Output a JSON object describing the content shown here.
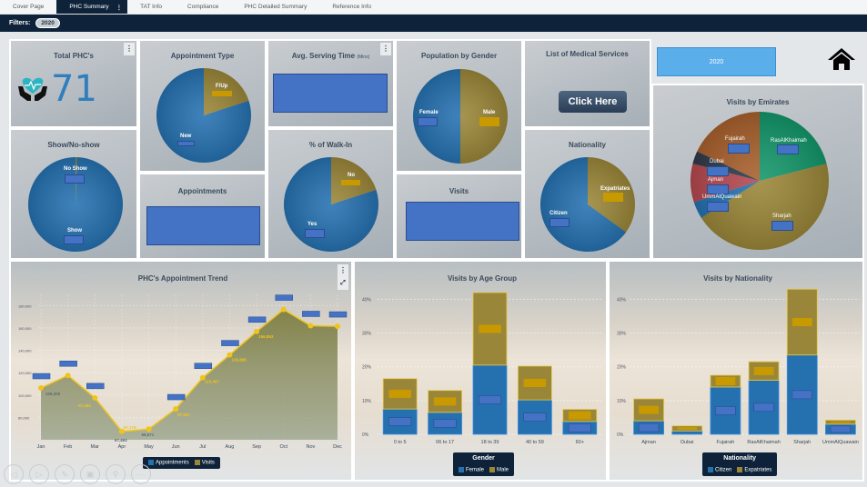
{
  "tabs": [
    {
      "label": "Cover Page",
      "active": false
    },
    {
      "label": "PHC Summary",
      "active": true
    },
    {
      "label": "TAT Info",
      "active": false
    },
    {
      "label": "Compliance",
      "active": false
    },
    {
      "label": "PHC Detailed Summary",
      "active": false
    },
    {
      "label": "Reference Info",
      "active": false
    }
  ],
  "tab_menu_icon": "⋮",
  "filters": {
    "label": "Filters:",
    "chip": "2020"
  },
  "kpi": {
    "title": "Total PHC's",
    "value": "71",
    "icon": "heart-hands-icon"
  },
  "tiles": {
    "appointment_type": {
      "title": "Appointment Type",
      "labels": [
        "F/Up",
        "New"
      ]
    },
    "avg_serving_time": {
      "title": "Avg. Serving Time",
      "unit": "(Mins)"
    },
    "population_gender": {
      "title": "Population by Gender",
      "labels": [
        "Female",
        "Male"
      ]
    },
    "medical_services": {
      "title": "List of Medical Services",
      "button": "Click Here"
    },
    "year_button": "2020",
    "show_noshow": {
      "title": "Show/No-show",
      "labels": [
        "No Show",
        "Show"
      ]
    },
    "appointments": {
      "title": "Appointments"
    },
    "walk_in": {
      "title": "% of Walk-In",
      "labels": [
        "No",
        "Yes"
      ]
    },
    "visits": {
      "title": "Visits"
    },
    "nationality": {
      "title": "Nationality",
      "labels": [
        "Expatriates",
        "Citizen"
      ]
    },
    "visits_emirates": {
      "title": "Visits by Emirates",
      "labels": [
        "Fujairah",
        "RasAlKhaimah",
        "Dubai",
        "Ajman",
        "UmmAlQuawain",
        "Sharjah"
      ]
    }
  },
  "colors": {
    "blue": "#2571b0",
    "gold": "#9a8638",
    "navy": "#0e2339",
    "label_blue": "#4472c4",
    "label_gold": "#c89a00",
    "line": "#f0c419"
  },
  "nav_buttons": [
    "previous-icon",
    "next-icon",
    "pencil-icon",
    "layout-icon",
    "search-icon",
    "more-icon"
  ],
  "chart_data": [
    {
      "type": "pie",
      "title": "Appointment Type",
      "slices": [
        {
          "label": "New",
          "value": 80
        },
        {
          "label": "F/Up",
          "value": 20
        }
      ]
    },
    {
      "type": "pie",
      "title": "Population by Gender",
      "slices": [
        {
          "label": "Female",
          "value": 50
        },
        {
          "label": "Male",
          "value": 50
        }
      ]
    },
    {
      "type": "pie",
      "title": "Show/No-show",
      "slices": [
        {
          "label": "Show",
          "value": 99.5
        },
        {
          "label": "No Show",
          "value": 0.5
        }
      ]
    },
    {
      "type": "pie",
      "title": "% of Walk-In",
      "slices": [
        {
          "label": "Yes",
          "value": 80
        },
        {
          "label": "No",
          "value": 20
        }
      ]
    },
    {
      "type": "pie",
      "title": "Nationality",
      "slices": [
        {
          "label": "Citizen",
          "value": 65
        },
        {
          "label": "Expatriates",
          "value": 35
        }
      ]
    },
    {
      "type": "pie",
      "title": "Visits by Emirates",
      "slices": [
        {
          "label": "RasAlKhaimah",
          "value": 21,
          "color": "#13966a"
        },
        {
          "label": "Sharjah",
          "value": 45,
          "color": "#9a8638"
        },
        {
          "label": "UmmAlQuawain",
          "value": 4,
          "color": "#2571b0"
        },
        {
          "label": "Ajman",
          "value": 9,
          "color": "#b5484f"
        },
        {
          "label": "Dubai",
          "value": 3,
          "color": "#2f3a48"
        },
        {
          "label": "Fujairah",
          "value": 18,
          "color": "#a8602c"
        }
      ]
    },
    {
      "type": "area",
      "title": "PHC's Appointment Trend",
      "categories": [
        "Jan",
        "Feb",
        "Mar",
        "Apr",
        "May",
        "Jun",
        "Jul",
        "Aug",
        "Sep",
        "Oct",
        "Nov",
        "Dec"
      ],
      "series": [
        {
          "name": "Visits",
          "values": [
            106300,
            117500,
            97481,
            67463,
            69571,
            87587,
            115457,
            135885,
            156853,
            176500,
            162000,
            161500
          ]
        }
      ],
      "data_labels": {
        "Jan": "106,300",
        "Mar": "97,481",
        "Apr": "67,463",
        "Apr_top": "67,178",
        "May": "69,571",
        "Jun": "87,587",
        "Jul": "115,457",
        "Aug": "135,885",
        "Sep": "156,853"
      },
      "ylim": [
        60000,
        190000
      ],
      "yticks": [
        "180,000",
        "160,000",
        "140,000",
        "120,000",
        "100,000",
        "80,000"
      ],
      "legend": [
        {
          "name": "Appointments",
          "color": "#2571b0"
        },
        {
          "name": "Visits",
          "color": "#9a8638"
        }
      ],
      "grid": true
    },
    {
      "type": "bar",
      "stacked": true,
      "title": "Visits by Age Group",
      "categories": [
        "0 to 5",
        "06 to 17",
        "18 to 39",
        "40 to 59",
        "60+"
      ],
      "series": [
        {
          "name": "Female",
          "values": [
            7.5,
            6.5,
            20.5,
            10.2,
            3.8
          ]
        },
        {
          "name": "Male",
          "values": [
            9.0,
            6.5,
            21.5,
            10.0,
            3.6
          ]
        }
      ],
      "yticks": [
        "40%",
        "30%",
        "20%",
        "10%",
        "0%"
      ],
      "ylim": [
        0,
        42
      ],
      "legend_title": "Gender",
      "legend": [
        {
          "name": "Female",
          "color": "#2571b0"
        },
        {
          "name": "Male",
          "color": "#9a8638"
        }
      ]
    },
    {
      "type": "bar",
      "stacked": true,
      "title": "Visits by Nationality",
      "categories": [
        "Ajman",
        "Dubai",
        "Fujairah",
        "RasAlKhaimah",
        "Sharjah",
        "UmmAlQuawain"
      ],
      "series": [
        {
          "name": "Citizen",
          "values": [
            4.0,
            1.0,
            14.0,
            16.0,
            23.5,
            3.0
          ]
        },
        {
          "name": "Expatriates",
          "values": [
            6.5,
            1.5,
            3.5,
            5.5,
            19.5,
            1.2
          ]
        }
      ],
      "yticks": [
        "40%",
        "30%",
        "20%",
        "10%",
        "0%"
      ],
      "ylim": [
        0,
        42
      ],
      "legend_title": "Nationality",
      "legend": [
        {
          "name": "Citizen",
          "color": "#2571b0"
        },
        {
          "name": "Expatriates",
          "color": "#9a8638"
        }
      ]
    }
  ]
}
